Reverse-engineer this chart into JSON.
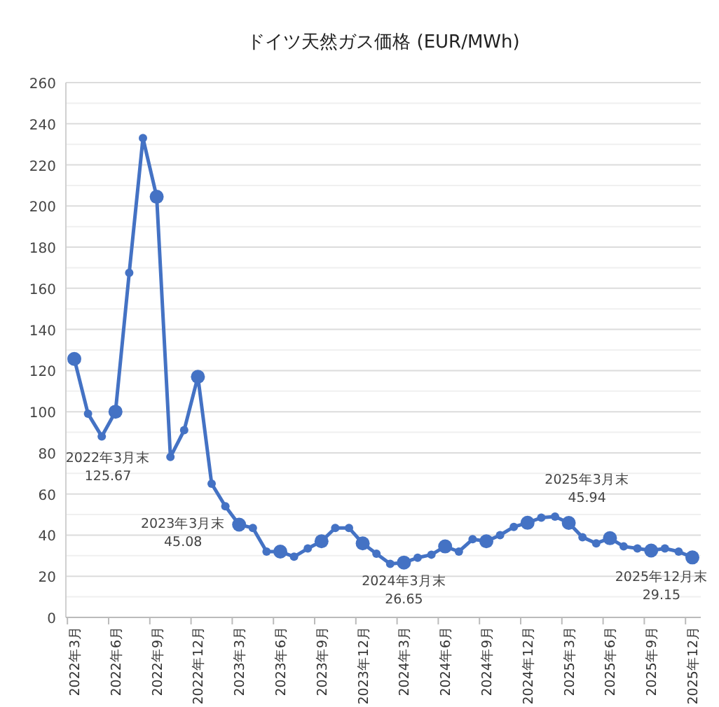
{
  "chart_data": {
    "type": "line",
    "title": "ドイツ天然ガス価格 (EUR/MWh)",
    "categories": [
      "2022年3月",
      null,
      null,
      "2022年6月",
      null,
      null,
      "2022年9月",
      null,
      null,
      "2022年12月",
      null,
      null,
      "2023年3月",
      null,
      null,
      "2023年6月",
      null,
      null,
      "2023年9月",
      null,
      null,
      "2023年12月",
      null,
      null,
      "2024年3月",
      null,
      null,
      "2024年6月",
      null,
      null,
      "2024年9月",
      null,
      null,
      "2024年12月",
      null,
      null,
      "2025年3月",
      null,
      null,
      "2025年6月",
      null,
      null,
      "2025年9月",
      null,
      null,
      "2025年12月"
    ],
    "series": [
      {
        "color": "#4472c4",
        "values": [
          125.67,
          99,
          88,
          100,
          167.5,
          233,
          204.5,
          78,
          91,
          117,
          65,
          54,
          45.08,
          43.5,
          32,
          32,
          29.5,
          33.5,
          37,
          43.5,
          43.5,
          36,
          31,
          26,
          26.65,
          29,
          30.5,
          34.5,
          32,
          38,
          37,
          40,
          44,
          46,
          48.5,
          49,
          45.94,
          39,
          36,
          38.5,
          34.5,
          33.5,
          32.5,
          33.5,
          32,
          29.15
        ]
      }
    ],
    "ylim": [
      0,
      260
    ],
    "yticks": [
      0,
      20,
      40,
      60,
      80,
      100,
      120,
      140,
      160,
      180,
      200,
      220,
      240,
      260
    ],
    "grid": "y",
    "marker": "circle",
    "line_style": "solid",
    "annotations": [
      "2022年3月末\n125.67",
      {
        "text": "2023年3月末\n45.08",
        "x": "2023年3月",
        "y": 45.08
      },
      {
        "text": "2024年3月末\n26.65",
        "x": "2024年3月",
        "y": 26.65
      },
      {
        "text": "2025年3月末\n45.94",
        "x": "2025年3月",
        "y": 45.94
      },
      {
        "text": "2025年12月末\n29.15",
        "x": "2025年12月",
        "y": 29.15
      }
    ]
  }
}
